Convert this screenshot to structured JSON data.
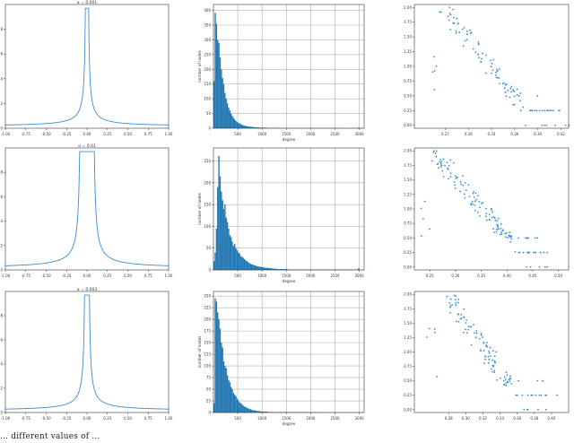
{
  "colors": {
    "line": "#3b8bd0",
    "bar": "#1f77b4",
    "axis": "#333333",
    "grid": "#b0b0b0"
  },
  "caption": "... different values of ...",
  "chart_data": [
    {
      "type": "line",
      "title": "α = 0.001",
      "xlim": [
        -1.0,
        1.0
      ],
      "ylim": [
        0,
        1.0
      ],
      "xticks": [
        -1.0,
        -0.75,
        -0.5,
        -0.25,
        0.0,
        0.25,
        0.5,
        0.75,
        1.0
      ],
      "xtick_labels": [
        "-1.00",
        "-0.75",
        "-0.50",
        "-0.25",
        "0.00",
        "0.25",
        "0.50",
        "0.75",
        "1.00"
      ],
      "yticks": [
        0.0,
        0.2,
        0.4,
        0.6,
        0.8
      ],
      "ytick_labels": [
        "0.0",
        "0.2",
        "0.4",
        "0.6",
        "0.8"
      ],
      "peak_halfwidth": 0.02,
      "tail_scale": 0.07,
      "peak": 0.97
    },
    {
      "type": "bar",
      "xlabel": "degree",
      "ylabel": "number of nodes",
      "xlim": [
        0,
        3100
      ],
      "ylim": [
        0,
        420
      ],
      "xticks": [
        500,
        1000,
        1500,
        2000,
        2500,
        3000
      ],
      "xtick_labels": [
        "500",
        "1000",
        "1500",
        "2000",
        "2500",
        "3000"
      ],
      "yticks": [
        0,
        50,
        100,
        150,
        200,
        250,
        300,
        350,
        400
      ],
      "ytick_labels": [
        "0",
        "50",
        "100",
        "150",
        "200",
        "250",
        "300",
        "350",
        "400"
      ],
      "grid": true,
      "bin_start": 0,
      "bin_width": 25,
      "values": [
        160,
        392,
        355,
        300,
        290,
        240,
        200,
        170,
        150,
        120,
        100,
        85,
        70,
        60,
        50,
        42,
        35,
        30,
        25,
        22,
        18,
        16,
        14,
        12,
        10,
        9,
        8,
        7,
        6,
        6,
        5,
        5,
        4,
        4,
        3,
        3,
        3,
        3,
        2,
        2,
        2,
        2,
        2,
        2,
        1,
        1,
        1,
        1,
        1,
        1,
        1,
        1,
        1,
        1,
        1,
        1,
        0,
        1,
        0,
        1,
        0,
        1,
        0,
        1,
        0,
        1,
        0,
        1,
        0,
        1,
        0,
        1,
        0,
        1,
        0,
        1,
        0,
        1,
        0,
        1,
        0,
        1,
        0,
        1,
        0,
        1,
        0,
        1,
        0,
        1,
        0,
        1,
        0,
        1,
        0,
        1,
        0,
        1,
        0,
        1,
        0,
        1,
        0,
        0,
        0,
        0,
        0,
        0,
        0,
        0,
        0,
        0,
        0,
        0,
        0,
        0,
        0,
        0,
        0,
        3
      ]
    },
    {
      "type": "scatter",
      "xlim": [
        0.23,
        0.43
      ],
      "ylim": [
        -0.05,
        2.05
      ],
      "xticks": [
        0.27,
        0.3,
        0.33,
        0.36,
        0.39,
        0.42
      ],
      "xtick_labels": [
        "0.27",
        "0.30",
        "0.33",
        "0.36",
        "0.39",
        "0.42"
      ],
      "yticks": [
        0.0,
        0.25,
        0.5,
        0.75,
        1.0,
        1.25,
        1.5,
        1.75,
        2.0
      ],
      "ytick_labels": [
        "0.00",
        "0.25",
        "0.50",
        "0.75",
        "1.00",
        "1.25",
        "1.50",
        "1.75",
        "2.00"
      ],
      "n_points": 110,
      "trend_start": [
        0.27,
        1.95
      ],
      "trend_end": [
        0.39,
        0.0
      ],
      "spread": 0.12
    },
    {
      "type": "line",
      "title": "α = 0.01",
      "xlim": [
        -1.0,
        1.0
      ],
      "ylim": [
        0,
        1.0
      ],
      "xticks": [
        -1.0,
        -0.75,
        -0.5,
        -0.25,
        0.0,
        0.25,
        0.5,
        0.75,
        1.0
      ],
      "xtick_labels": [
        "-1.00",
        "-0.75",
        "-0.50",
        "-0.25",
        "0.00",
        "0.25",
        "0.50",
        "0.75",
        "1.00"
      ],
      "yticks": [
        0.0,
        0.2,
        0.4,
        0.6,
        0.8
      ],
      "ytick_labels": [
        "0.0",
        "0.2",
        "0.4",
        "0.6",
        "0.8"
      ],
      "peak_halfwidth": 0.09,
      "tail_scale": 0.11,
      "peak": 0.97
    },
    {
      "type": "bar",
      "xlabel": "degree",
      "ylabel": "number of nodes",
      "xlim": [
        0,
        3100
      ],
      "ylim": [
        0,
        280
      ],
      "xticks": [
        500,
        1000,
        1500,
        2000,
        2500,
        3000
      ],
      "xtick_labels": [
        "500",
        "1000",
        "1500",
        "2000",
        "2500",
        "3000"
      ],
      "yticks": [
        0,
        50,
        100,
        150,
        200,
        250
      ],
      "ytick_labels": [
        "0",
        "50",
        "100",
        "150",
        "200",
        "250"
      ],
      "grid": true,
      "bin_start": 0,
      "bin_width": 25,
      "values": [
        20,
        40,
        95,
        190,
        262,
        215,
        180,
        160,
        140,
        150,
        120,
        110,
        95,
        80,
        75,
        65,
        55,
        60,
        50,
        45,
        40,
        38,
        32,
        30,
        28,
        25,
        22,
        20,
        18,
        16,
        14,
        13,
        12,
        11,
        10,
        9,
        8,
        8,
        7,
        7,
        6,
        6,
        5,
        5,
        5,
        4,
        4,
        4,
        3,
        3,
        3,
        3,
        2,
        2,
        2,
        2,
        2,
        2,
        2,
        2,
        2,
        1,
        1,
        1,
        1,
        1,
        1,
        1,
        1,
        1,
        1,
        1,
        1,
        1,
        1,
        1,
        1,
        1,
        1,
        1,
        1,
        1,
        1,
        1,
        1,
        1,
        1,
        1,
        1,
        1,
        1,
        1,
        1,
        1,
        1,
        1,
        1,
        1,
        1,
        1,
        1,
        1,
        1,
        1,
        1,
        1,
        1,
        1,
        1,
        1,
        1,
        1,
        1,
        1,
        1,
        1,
        1,
        1,
        1,
        4
      ]
    },
    {
      "type": "scatter",
      "xlim": [
        0.22,
        0.52
      ],
      "ylim": [
        -0.05,
        2.05
      ],
      "xticks": [
        0.25,
        0.3,
        0.35,
        0.4,
        0.45,
        0.5
      ],
      "xtick_labels": [
        "0.25",
        "0.30",
        "0.35",
        "0.40",
        "0.45",
        "0.50"
      ],
      "yticks": [
        0.0,
        0.25,
        0.5,
        0.75,
        1.0,
        1.25,
        1.5,
        1.75,
        2.0
      ],
      "ytick_labels": [
        "0.00",
        "0.25",
        "0.50",
        "0.75",
        "1.00",
        "1.25",
        "1.50",
        "1.75",
        "2.00"
      ],
      "n_points": 140,
      "trend_start": [
        0.26,
        1.95
      ],
      "trend_end": [
        0.45,
        0.0
      ],
      "spread": 0.15
    },
    {
      "type": "line",
      "title": "α = 0.003",
      "xlim": [
        -1.0,
        1.0
      ],
      "ylim": [
        0,
        1.0
      ],
      "xticks": [
        -1.0,
        -0.75,
        -0.5,
        -0.25,
        0.0,
        0.25,
        0.5,
        0.75,
        1.0
      ],
      "xtick_labels": [
        "-1.00",
        "-0.75",
        "-0.50",
        "-0.25",
        "0.00",
        "0.25",
        "0.50",
        "0.75",
        "1.00"
      ],
      "yticks": [
        0.0,
        0.2,
        0.4,
        0.6,
        0.8
      ],
      "ytick_labels": [
        "0.0",
        "0.2",
        "0.4",
        "0.6",
        "0.8"
      ],
      "peak_halfwidth": 0.03,
      "tail_scale": 0.08,
      "peak": 0.97
    },
    {
      "type": "bar",
      "xlabel": "degree",
      "ylabel": "number of nodes",
      "xlim": [
        0,
        3100
      ],
      "ylim": [
        0,
        260
      ],
      "xticks": [
        500,
        1000,
        1500,
        2000,
        2500,
        3000
      ],
      "xtick_labels": [
        "500",
        "1000",
        "1500",
        "2000",
        "2500",
        "3000"
      ],
      "yticks": [
        0,
        25,
        50,
        75,
        100,
        125,
        150,
        175,
        200,
        225,
        250
      ],
      "ytick_labels": [
        "0",
        "25",
        "50",
        "75",
        "100",
        "125",
        "150",
        "175",
        "200",
        "225",
        "250"
      ],
      "grid": true,
      "bin_start": 0,
      "bin_width": 25,
      "values": [
        20,
        245,
        238,
        215,
        200,
        180,
        150,
        140,
        110,
        100,
        95,
        80,
        70,
        65,
        55,
        50,
        42,
        38,
        35,
        30,
        26,
        22,
        20,
        18,
        15,
        13,
        12,
        10,
        9,
        8,
        7,
        6,
        5,
        5,
        4,
        4,
        3,
        3,
        3,
        2,
        2,
        2,
        2,
        2,
        2,
        1,
        1,
        1,
        1,
        1,
        1,
        1,
        1,
        1,
        1,
        1,
        1,
        1,
        1,
        1,
        1,
        1,
        1,
        1,
        1,
        1,
        1,
        1,
        1,
        1,
        1,
        1,
        1,
        1,
        1,
        1,
        1,
        1,
        0,
        1,
        0,
        1,
        0,
        1,
        0,
        1,
        0,
        0,
        0,
        0,
        0,
        0,
        0,
        0,
        0,
        0,
        0,
        0,
        0,
        0,
        0,
        0,
        0,
        0,
        0,
        0,
        0,
        0,
        0,
        0,
        0,
        0,
        0,
        0,
        0,
        0,
        0,
        0,
        0,
        1
      ]
    },
    {
      "type": "scatter",
      "xlim": [
        0.24,
        0.42
      ],
      "ylim": [
        -0.05,
        2.05
      ],
      "xticks": [
        0.28,
        0.3,
        0.32,
        0.34,
        0.36,
        0.38,
        0.4
      ],
      "xtick_labels": [
        "0.28",
        "0.30",
        "0.32",
        "0.34",
        "0.36",
        "0.38",
        "0.40"
      ],
      "yticks": [
        0.0,
        0.25,
        0.5,
        0.75,
        1.0,
        1.25,
        1.5,
        1.75,
        2.0
      ],
      "ytick_labels": [
        "0.00",
        "0.25",
        "0.50",
        "0.75",
        "1.00",
        "1.25",
        "1.50",
        "1.75",
        "2.00"
      ],
      "n_points": 120,
      "trend_start": [
        0.28,
        1.95
      ],
      "trend_end": [
        0.37,
        0.0
      ],
      "spread": 0.12
    }
  ]
}
